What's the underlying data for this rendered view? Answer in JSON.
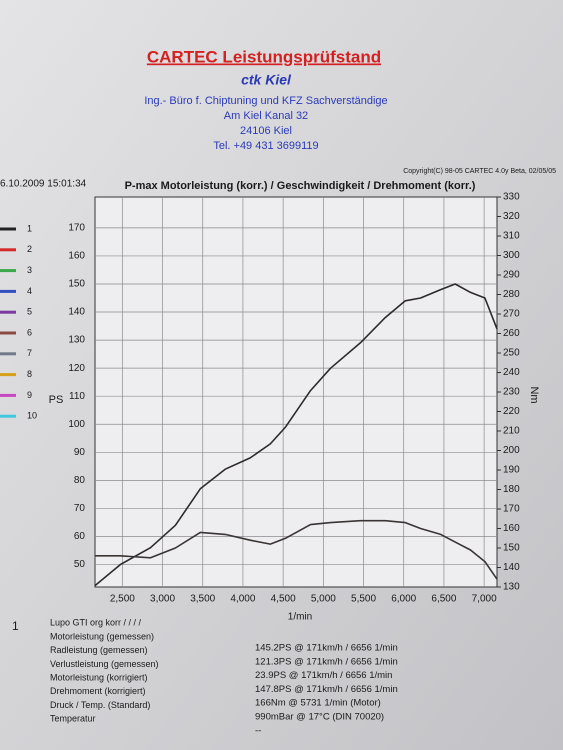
{
  "header": {
    "title": "CARTEC Leistungsprüfstand",
    "company": "ctk Kiel",
    "lines": [
      "Ing.- Büro f. Chiptuning und KFZ Sachverständige",
      "Am Kiel Kanal 32",
      "24106 Kiel",
      "Tel. +49 431 3699119"
    ]
  },
  "copyright": "Copyright(C) 98-05 CARTEC 4.0y Beta, 02/05/05",
  "timestamp": "6.10.2009 15:01:34",
  "legend": [
    {
      "label": "1",
      "color": "#222222"
    },
    {
      "label": "2",
      "color": "#d42a2a"
    },
    {
      "label": "3",
      "color": "#3aa84a"
    },
    {
      "label": "4",
      "color": "#3050c0"
    },
    {
      "label": "5",
      "color": "#7a3aa0"
    },
    {
      "label": "6",
      "color": "#8a4a40"
    },
    {
      "label": "7",
      "color": "#707a88"
    },
    {
      "label": "8",
      "color": "#d8a018"
    },
    {
      "label": "9",
      "color": "#c848c0"
    },
    {
      "label": "10",
      "color": "#40c8e0"
    }
  ],
  "chart_data": {
    "type": "line",
    "title": "P-max Motorleistung (korr.) / Geschwindigkeit / Drehmoment (korr.)",
    "y_label": "PS",
    "y2_label": "Nm",
    "x_label": "1/min",
    "x": [
      2160,
      2475,
      2850,
      3160,
      3470,
      3780,
      4090,
      4340,
      4530,
      4840,
      5090,
      5460,
      5770,
      6020,
      6210,
      6460,
      6640,
      6830,
      7010,
      7160
    ],
    "xlim": [
      2160,
      7160
    ],
    "xticks": [
      {
        "value": 2500,
        "label": "2,500"
      },
      {
        "value": 3000,
        "label": "3,000"
      },
      {
        "value": 3500,
        "label": "3,500"
      },
      {
        "value": 4000,
        "label": "4,000"
      },
      {
        "value": 4500,
        "label": "4,500"
      },
      {
        "value": 5000,
        "label": "5,000"
      },
      {
        "value": 5500,
        "label": "5,500"
      },
      {
        "value": 6000,
        "label": "6,000"
      },
      {
        "value": 6500,
        "label": "6,500"
      },
      {
        "value": 7000,
        "label": "7,000"
      }
    ],
    "ylim": [
      42,
      181
    ],
    "yticks": [
      50,
      60,
      70,
      80,
      90,
      100,
      110,
      120,
      130,
      140,
      150,
      160,
      170
    ],
    "y2lim": [
      130,
      330
    ],
    "y2ticks": [
      130,
      140,
      150,
      160,
      170,
      180,
      190,
      200,
      210,
      220,
      230,
      240,
      250,
      260,
      270,
      280,
      290,
      300,
      310,
      320,
      330
    ],
    "grid": true,
    "series": [
      {
        "color": "#2e2a2a",
        "values": [
          42.5,
          50,
          56,
          64,
          77,
          84,
          88,
          93,
          99,
          112,
          120,
          129,
          138,
          144,
          145,
          148,
          150,
          147,
          145,
          134
        ]
      },
      {
        "color": "#3a3434",
        "axis": "y2",
        "values": [
          146,
          146,
          145,
          150,
          158,
          157,
          154,
          152,
          155,
          162,
          163,
          164,
          164,
          163,
          160,
          157,
          153,
          149,
          143,
          134
        ]
      }
    ]
  },
  "item": "1",
  "results": {
    "heading": "Lupo GTI org korr / / / /",
    "rows": [
      [
        "Motorleistung (gemessen)",
        "145.2PS @ 171km/h / 6656 1/min"
      ],
      [
        "Radleistung (gemessen)",
        "121.3PS @ 171km/h / 6656 1/min"
      ],
      [
        "Verlustleistung (gemessen)",
        "23.9PS @ 171km/h / 6656 1/min"
      ],
      [
        "Motorleistung (korrigiert)",
        "147.8PS @ 171km/h / 6656 1/min"
      ],
      [
        "Drehmoment (korrigiert)",
        "166Nm @ 5731 1/min (Motor)"
      ],
      [
        "Druck / Temp. (Standard)",
        "990mBar @ 17°C (DIN 70020)"
      ],
      [
        "Temperatur",
        "--"
      ]
    ]
  }
}
